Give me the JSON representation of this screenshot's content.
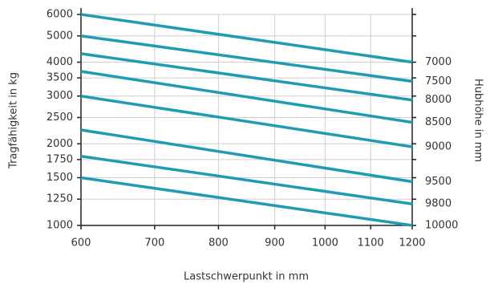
{
  "chart_data": {
    "type": "line",
    "xlabel": "Lastschwerpunkt in mm",
    "ylabel": "Tragfähigkeit in kg",
    "y2label": "Hubhöhe in mm",
    "x": [
      600,
      1200
    ],
    "series": [
      {
        "name": "7000",
        "color": "#1e9db2",
        "values": [
          6000,
          4000
        ]
      },
      {
        "name": "7500",
        "color": "#1e9db2",
        "values": [
          5000,
          3400
        ]
      },
      {
        "name": "8000",
        "color": "#1e9db2",
        "values": [
          4300,
          2900
        ]
      },
      {
        "name": "8500",
        "color": "#1e9db2",
        "values": [
          3700,
          2400
        ]
      },
      {
        "name": "9000",
        "color": "#1e9db2",
        "values": [
          3000,
          1950
        ]
      },
      {
        "name": "9500",
        "color": "#1e9db2",
        "values": [
          2250,
          1450
        ]
      },
      {
        "name": "9800",
        "color": "#1e9db2",
        "values": [
          1800,
          1200
        ]
      },
      {
        "name": "10000",
        "color": "#1e9db2",
        "values": [
          1500,
          1000
        ]
      }
    ],
    "xlim": [
      600,
      1200
    ],
    "xticks": [
      600,
      700,
      800,
      900,
      1000,
      1100,
      1200
    ],
    "ylim": [
      1000,
      6000
    ],
    "yticks": [
      1000,
      1250,
      1500,
      1750,
      2000,
      2500,
      3000,
      3500,
      4000,
      5000,
      6000
    ],
    "xscale": "log",
    "yscale": "log",
    "grid": true
  }
}
